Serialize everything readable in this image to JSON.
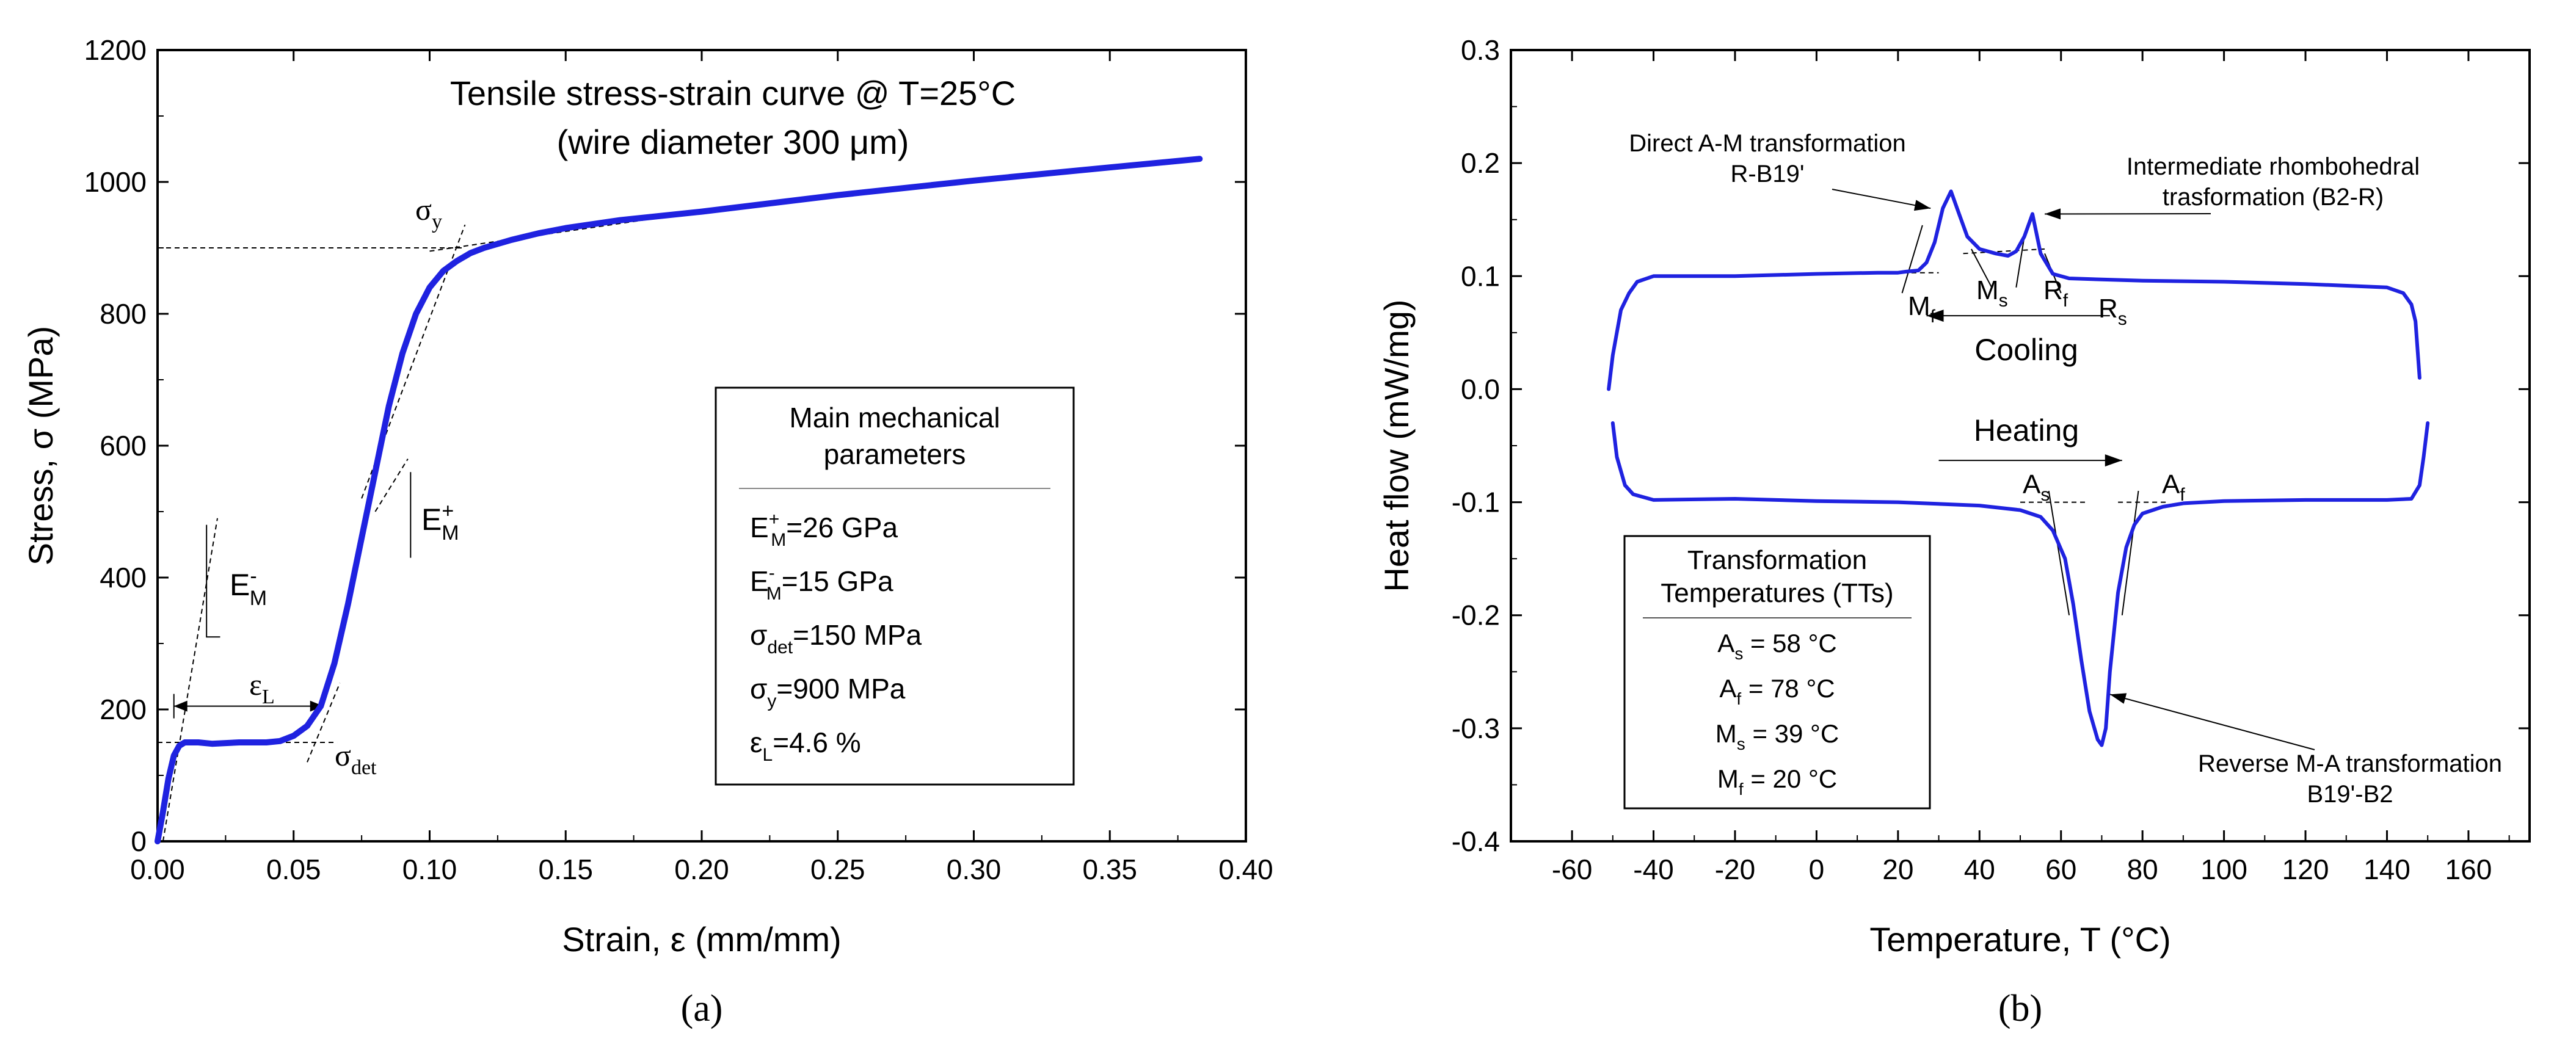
{
  "chart_data": [
    {
      "type": "line",
      "panel_label": "(a)",
      "title": "Tensile stress-strain curve @ T=25°C",
      "subtitle": "(wire diameter 300 μm)",
      "xlabel": "Strain, ε (mm/mm)",
      "ylabel": "Stress, σ (MPa)",
      "xlim": [
        0,
        0.4
      ],
      "ylim": [
        0,
        1200
      ],
      "xticks": [
        "0.00",
        "0.05",
        "0.10",
        "0.15",
        "0.20",
        "0.25",
        "0.30",
        "0.35",
        "0.40"
      ],
      "yticks": [
        "0",
        "200",
        "400",
        "600",
        "800",
        "1000",
        "1200"
      ],
      "series": [
        {
          "name": "stress-strain curve",
          "color": "#1f22e0",
          "x": [
            0.0,
            0.002,
            0.004,
            0.006,
            0.008,
            0.01,
            0.015,
            0.02,
            0.03,
            0.04,
            0.045,
            0.05,
            0.055,
            0.06,
            0.065,
            0.07,
            0.075,
            0.08,
            0.085,
            0.09,
            0.095,
            0.1,
            0.105,
            0.11,
            0.115,
            0.12,
            0.13,
            0.14,
            0.15,
            0.17,
            0.2,
            0.25,
            0.3,
            0.35,
            0.383
          ],
          "y": [
            0,
            45,
            95,
            130,
            145,
            150,
            150,
            148,
            150,
            150,
            152,
            160,
            175,
            205,
            270,
            360,
            460,
            560,
            660,
            740,
            800,
            840,
            865,
            880,
            892,
            900,
            912,
            922,
            930,
            942,
            955,
            980,
            1002,
            1022,
            1035
          ]
        }
      ],
      "annotations": {
        "sigma_y": "σ",
        "sigma_y_sub": "y",
        "sigma_det": "σ",
        "sigma_det_sub": "det",
        "eps_L": "ε",
        "eps_L_sub": "L",
        "E_minus": "E",
        "E_minus_sup": "-",
        "E_minus_sub": "M",
        "E_plus": "E",
        "E_plus_sup": "+",
        "E_plus_sub": "M",
        "sigma_y_value": 900,
        "sigma_det_value": 150
      },
      "legend": {
        "title_line1": "Main mechanical",
        "title_line2": "parameters",
        "rows": [
          {
            "sym": "E",
            "sup": "+",
            "sub": "M",
            "val": "=26 GPa"
          },
          {
            "sym": "E",
            "sup": "-",
            "sub": "M",
            "val": "=15 GPa"
          },
          {
            "sym": "σ",
            "sup": "",
            "sub": "det",
            "val": "=150 MPa"
          },
          {
            "sym": "σ",
            "sup": "",
            "sub": "y",
            "val": "=900 MPa"
          },
          {
            "sym": "ε",
            "sup": "",
            "sub": "L",
            "val": "=4.6 %"
          }
        ]
      }
    },
    {
      "type": "line",
      "panel_label": "(b)",
      "title": "",
      "xlabel": "Temperature, T (°C)",
      "ylabel": "Heat flow (mW/mg)",
      "xlim": [
        -75,
        175
      ],
      "ylim": [
        -0.4,
        0.3
      ],
      "xticks": [
        "-60",
        "-40",
        "-20",
        "0",
        "20",
        "40",
        "60",
        "80",
        "100",
        "120",
        "140",
        "160"
      ],
      "yticks": [
        "-0.4",
        "-0.3",
        "-0.2",
        "-0.1",
        "0.0",
        "0.1",
        "0.2",
        "0.3"
      ],
      "series": [
        {
          "name": "cooling",
          "color": "#1f22e0",
          "x": [
            148,
            147,
            146,
            144,
            140,
            120,
            100,
            80,
            70,
            62,
            58,
            55,
            53,
            51,
            49,
            47,
            44,
            40,
            37,
            35,
            33,
            31,
            29,
            27,
            25,
            22,
            20,
            18,
            15,
            0,
            -20,
            -40,
            -44,
            -46,
            -48,
            -50,
            -51
          ],
          "y": [
            0.01,
            0.06,
            0.075,
            0.085,
            0.09,
            0.093,
            0.095,
            0.096,
            0.097,
            0.098,
            0.102,
            0.12,
            0.155,
            0.135,
            0.122,
            0.118,
            0.12,
            0.124,
            0.135,
            0.155,
            0.175,
            0.16,
            0.13,
            0.112,
            0.105,
            0.104,
            0.103,
            0.103,
            0.103,
            0.102,
            0.1,
            0.1,
            0.095,
            0.085,
            0.07,
            0.03,
            0.0
          ]
        },
        {
          "name": "heating",
          "color": "#1f22e0",
          "x": [
            -50,
            -49,
            -47,
            -45,
            -40,
            -20,
            0,
            20,
            40,
            50,
            55,
            58,
            61,
            63,
            65,
            67,
            69,
            70,
            71,
            72,
            74,
            76,
            78,
            80,
            85,
            90,
            100,
            120,
            140,
            146,
            148,
            149,
            150
          ],
          "y": [
            -0.03,
            -0.06,
            -0.085,
            -0.093,
            -0.098,
            -0.097,
            -0.099,
            -0.1,
            -0.103,
            -0.107,
            -0.113,
            -0.125,
            -0.15,
            -0.19,
            -0.24,
            -0.285,
            -0.31,
            -0.315,
            -0.3,
            -0.25,
            -0.18,
            -0.14,
            -0.12,
            -0.11,
            -0.104,
            -0.101,
            -0.099,
            -0.098,
            -0.098,
            -0.097,
            -0.085,
            -0.06,
            -0.03
          ]
        }
      ],
      "annotations": {
        "direct_line1": "Direct A-M transformation",
        "direct_line2": "R-B19'",
        "intermediate_line1": "Intermediate rhombohedral",
        "intermediate_line2": "trasformation (B2-R)",
        "reverse_line1": "Reverse M-A transformation",
        "reverse_line2": "B19'-B2",
        "cooling": "Cooling",
        "heating": "Heating",
        "Mf": "M",
        "Mf_sub": "f",
        "Ms": "M",
        "Ms_sub": "s",
        "Rf": "R",
        "Rf_sub": "f",
        "Rs": "R",
        "Rs_sub": "s",
        "As": "A",
        "As_sub": "s",
        "Af": "A",
        "Af_sub": "f"
      },
      "legend": {
        "title_line1": "Transformation",
        "title_line2": "Temperatures (TTs)",
        "rows": [
          {
            "sym": "A",
            "sub": "s",
            "val": " = 58 °C"
          },
          {
            "sym": "A",
            "sub": "f",
            "val": " = 78 °C"
          },
          {
            "sym": "M",
            "sub": "s",
            "val": " = 39 °C"
          },
          {
            "sym": "M",
            "sub": "f",
            "val": " = 20 °C"
          }
        ]
      }
    }
  ]
}
